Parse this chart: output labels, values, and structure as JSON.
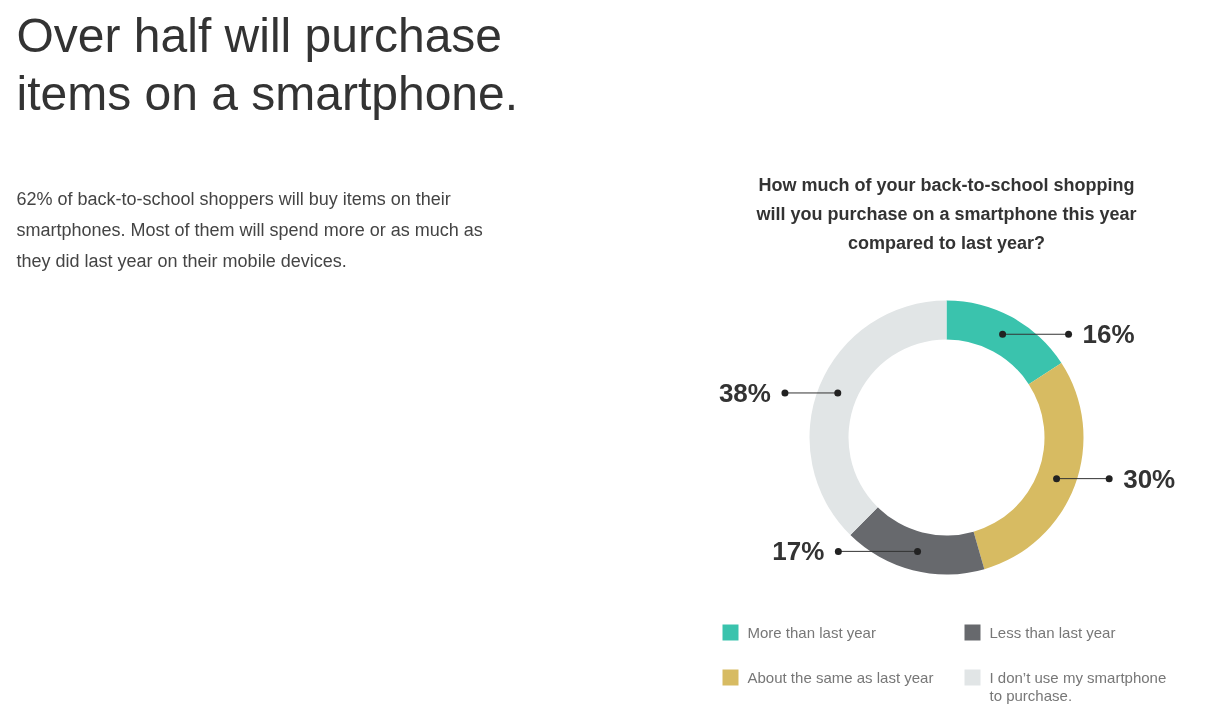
{
  "chart_data": {
    "type": "donut",
    "title": "Over half will purchase items on a smartphone.",
    "subtitle": "How much of your back-to-school shopping will you purchase on a smartphone this year compared to last year?",
    "annotations": [
      "62% of back-to-school shoppers will buy items on their smartphones. Most of them will spend more or as much as they did last year on their mobile devices."
    ],
    "categories": [
      "More than last year",
      "About the same as last year",
      "Less than last year",
      "I don’t use my smartphone to purchase."
    ],
    "values": [
      16,
      30,
      17,
      38
    ],
    "colors": [
      "#3ac3ad",
      "#d7bb62",
      "#67696d",
      "#e1e5e6"
    ],
    "value_labels": [
      "16%",
      "30%",
      "17%",
      "38%"
    ],
    "legend": "bottom"
  }
}
